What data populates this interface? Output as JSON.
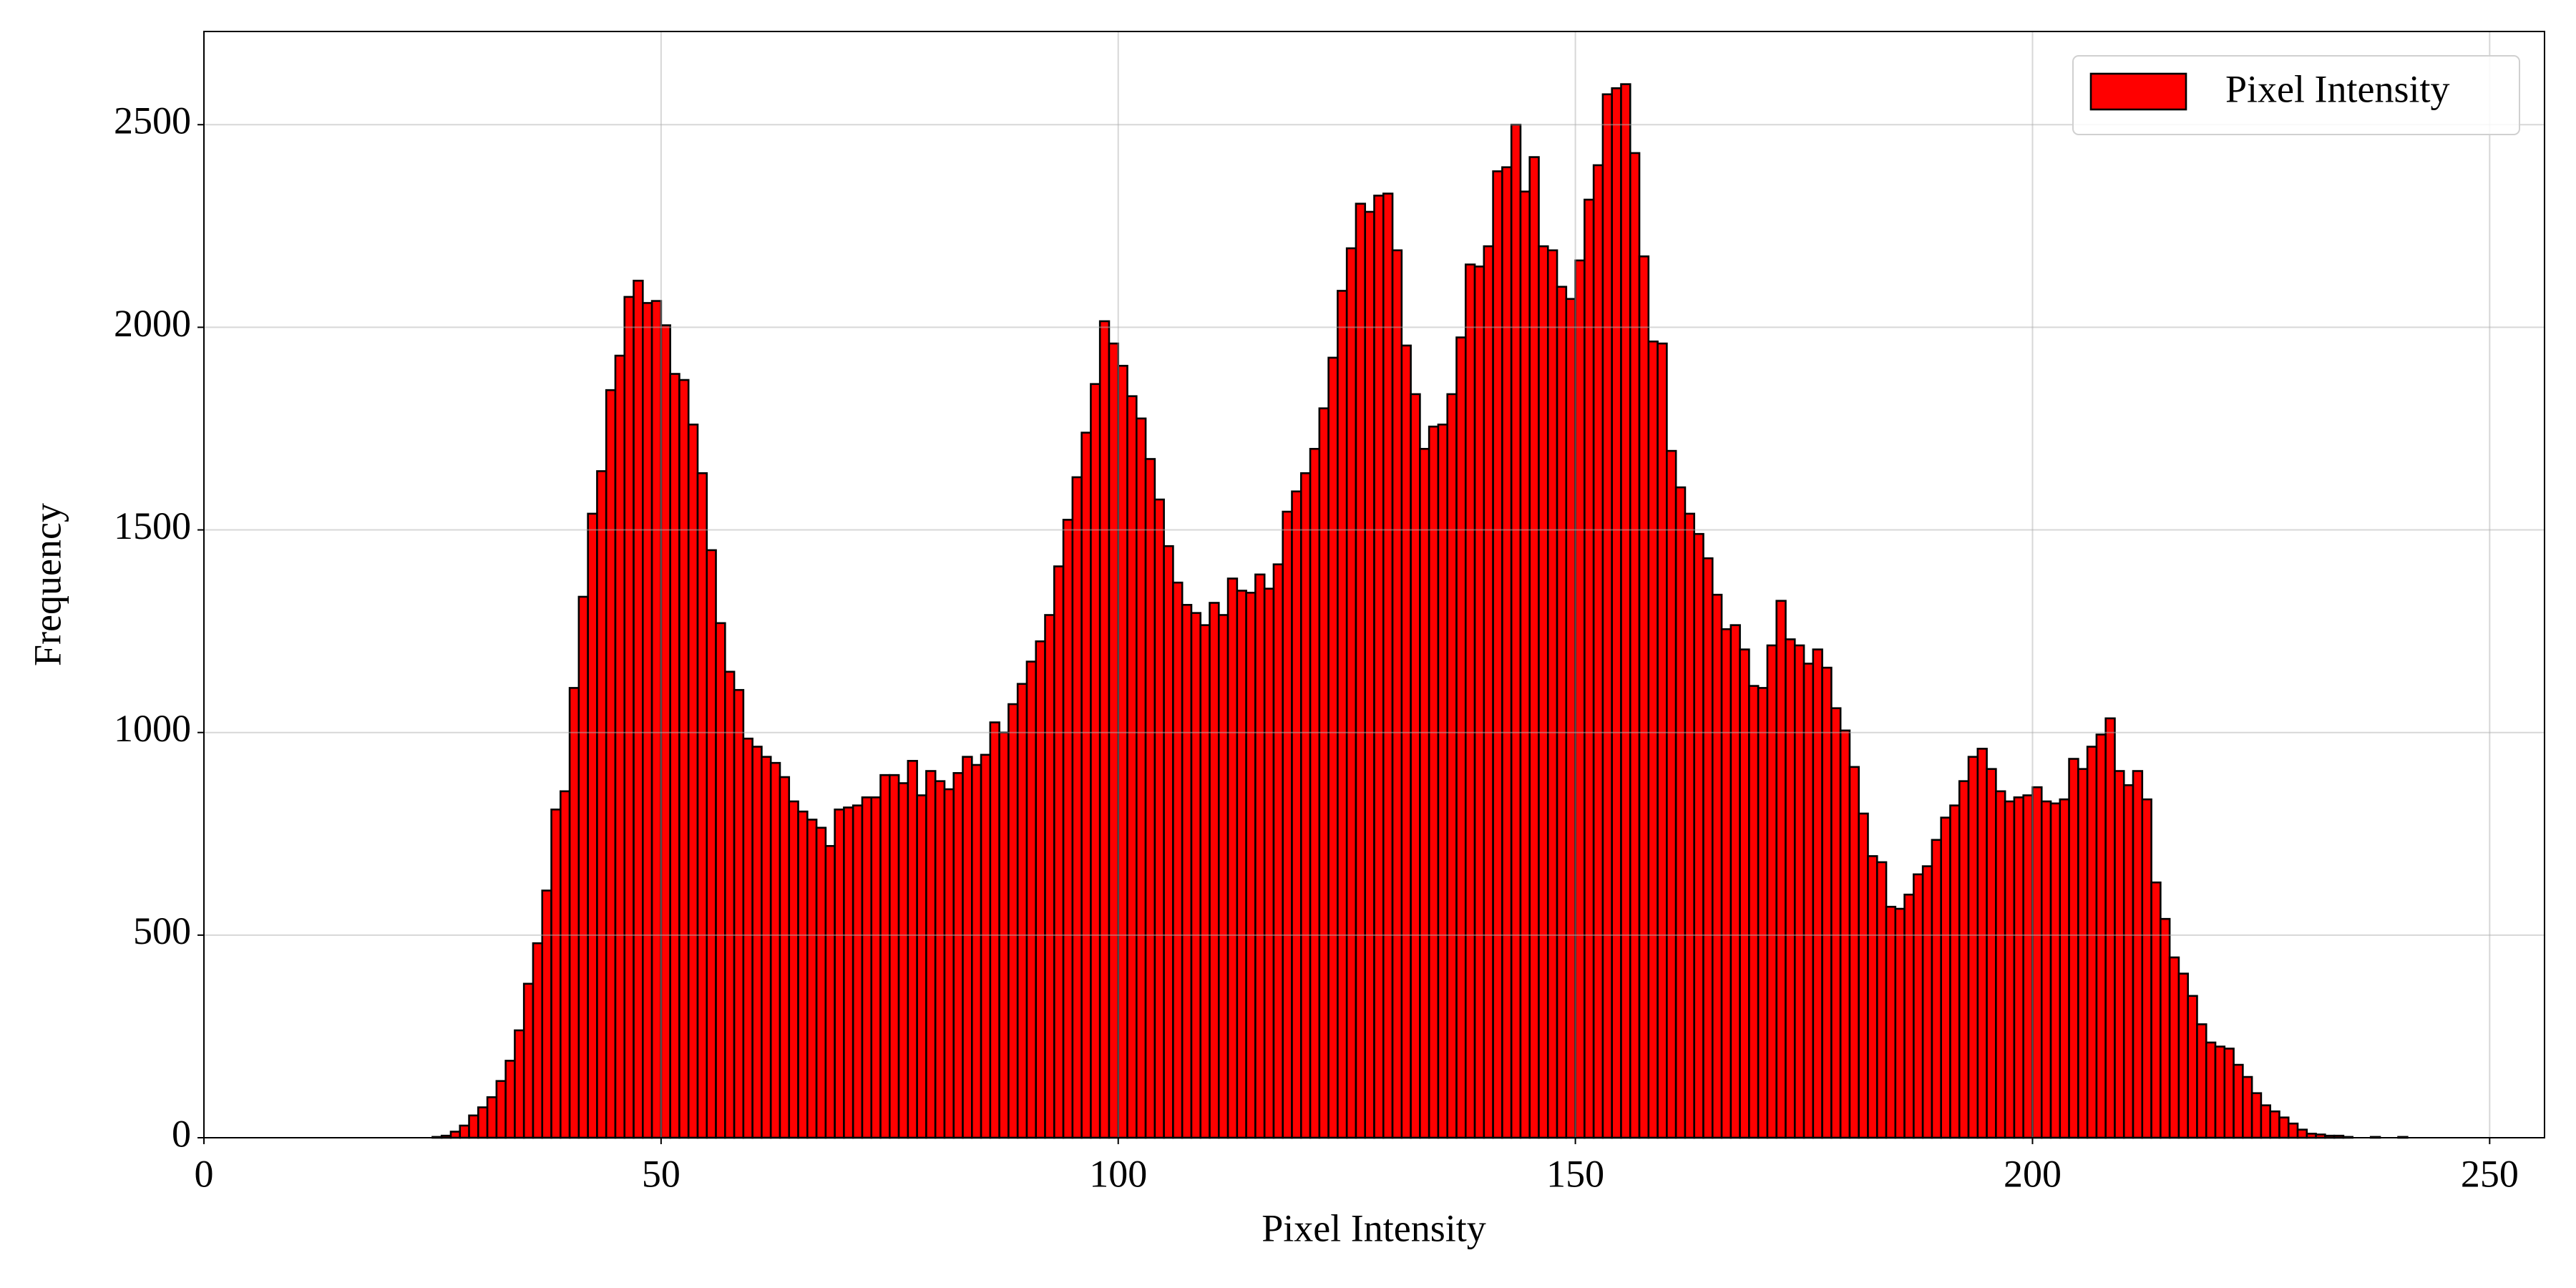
{
  "chart_data": {
    "type": "histogram",
    "xlabel": "Pixel Intensity",
    "ylabel": "Frequency",
    "bins": [
      0,
      1,
      2,
      3,
      4,
      5,
      6,
      7,
      8,
      9,
      10,
      11,
      12,
      13,
      14,
      15,
      16,
      17,
      18,
      19,
      20,
      21,
      22,
      23,
      24,
      25,
      26,
      27,
      28,
      29,
      30,
      31,
      32,
      33,
      34,
      35,
      36,
      37,
      38,
      39,
      40,
      41,
      42,
      43,
      44,
      45,
      46,
      47,
      48,
      49,
      50,
      51,
      52,
      53,
      54,
      55,
      56,
      57,
      58,
      59,
      60,
      61,
      62,
      63,
      64,
      65,
      66,
      67,
      68,
      69,
      70,
      71,
      72,
      73,
      74,
      75,
      76,
      77,
      78,
      79,
      80,
      81,
      82,
      83,
      84,
      85,
      86,
      87,
      88,
      89,
      90,
      91,
      92,
      93,
      94,
      95,
      96,
      97,
      98,
      99,
      100,
      101,
      102,
      103,
      104,
      105,
      106,
      107,
      108,
      109,
      110,
      111,
      112,
      113,
      114,
      115,
      116,
      117,
      118,
      119,
      120,
      121,
      122,
      123,
      124,
      125,
      126,
      127,
      128,
      129,
      130,
      131,
      132,
      133,
      134,
      135,
      136,
      137,
      138,
      139,
      140,
      141,
      142,
      143,
      144,
      145,
      146,
      147,
      148,
      149,
      150,
      151,
      152,
      153,
      154,
      155,
      156,
      157,
      158,
      159,
      160,
      161,
      162,
      163,
      164,
      165,
      166,
      167,
      168,
      169,
      170,
      171,
      172,
      173,
      174,
      175,
      176,
      177,
      178,
      179,
      180,
      181,
      182,
      183,
      184,
      185,
      186,
      187,
      188,
      189,
      190,
      191,
      192,
      193,
      194,
      195,
      196,
      197,
      198,
      199,
      200,
      201,
      202,
      203,
      204,
      205,
      206,
      207,
      208,
      209,
      210,
      211,
      212,
      213,
      214,
      215,
      216,
      217,
      218,
      219,
      220,
      221,
      222,
      223,
      224,
      225,
      226,
      227,
      228,
      229,
      230,
      231,
      232,
      233,
      234,
      235,
      236,
      237,
      238,
      239,
      240,
      241,
      242,
      243,
      244,
      245,
      246,
      247,
      248,
      249,
      250,
      251,
      252,
      253,
      254,
      255,
      256
    ],
    "series": [
      {
        "name": "Pixel Intensity",
        "color": "#ff0000",
        "edgecolor": "#000000",
        "values": [
          0,
          0,
          0,
          0,
          0,
          0,
          0,
          0,
          0,
          0,
          0,
          0,
          0,
          0,
          0,
          0,
          0,
          0,
          0,
          0,
          0,
          0,
          0,
          0,
          0,
          2,
          5,
          15,
          30,
          55,
          75,
          100,
          140,
          190,
          265,
          380,
          480,
          610,
          810,
          855,
          1110,
          1335,
          1540,
          1645,
          1845,
          1930,
          2075,
          2115,
          2060,
          2065,
          2005,
          1885,
          1870,
          1760,
          1640,
          1450,
          1270,
          1150,
          1105,
          985,
          965,
          940,
          925,
          890,
          830,
          805,
          785,
          765,
          720,
          810,
          815,
          820,
          840,
          840,
          895,
          895,
          875,
          930,
          845,
          905,
          880,
          860,
          900,
          940,
          920,
          945,
          1025,
          1000,
          1070,
          1120,
          1175,
          1225,
          1290,
          1410,
          1525,
          1630,
          1740,
          1860,
          2015,
          1960,
          1905,
          1830,
          1775,
          1675,
          1575,
          1460,
          1370,
          1315,
          1295,
          1265,
          1320,
          1290,
          1380,
          1350,
          1345,
          1390,
          1355,
          1415,
          1545,
          1595,
          1640,
          1700,
          1800,
          1925,
          2090,
          2195,
          2305,
          2285,
          2325,
          2330,
          2190,
          1955,
          1835,
          1700,
          1755,
          1760,
          1835,
          1975,
          2155,
          2150,
          2200,
          2385,
          2395,
          2500,
          2335,
          2420,
          2200,
          2190,
          2100,
          2070,
          2165,
          2315,
          2400,
          2575,
          2590,
          2600,
          2430,
          2175,
          1965,
          1960,
          1695,
          1605,
          1540,
          1490,
          1430,
          1340,
          1255,
          1265,
          1205,
          1115,
          1110,
          1215,
          1325,
          1230,
          1215,
          1170,
          1205,
          1160,
          1060,
          1005,
          915,
          800,
          695,
          680,
          570,
          565,
          600,
          650,
          670,
          735,
          790,
          820,
          880,
          940,
          960,
          910,
          855,
          830,
          840,
          845,
          865,
          830,
          825,
          835,
          935,
          910,
          965,
          995,
          1035,
          905,
          870,
          905,
          835,
          630,
          540,
          445,
          405,
          350,
          280,
          235,
          225,
          220,
          180,
          150,
          110,
          80,
          65,
          50,
          35,
          20,
          10,
          8,
          5,
          5,
          2,
          0,
          0,
          2,
          0,
          0,
          2,
          0,
          0,
          0,
          0,
          0,
          0,
          0,
          0,
          0,
          0,
          0,
          0,
          0,
          0,
          0
        ]
      }
    ],
    "xlim": [
      0,
      256
    ],
    "ylim": [
      0,
      2730
    ],
    "xticks": [
      0,
      50,
      100,
      150,
      200,
      250
    ],
    "yticks": [
      0,
      500,
      1000,
      1500,
      2000,
      2500
    ],
    "grid": true,
    "legend": "upper right"
  }
}
